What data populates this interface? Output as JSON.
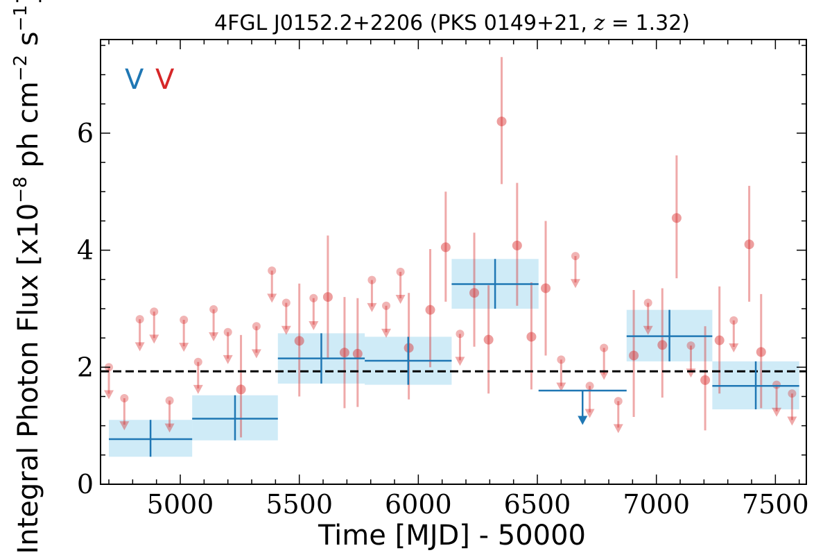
{
  "colors": {
    "monthly": "#d62728",
    "yearly": "#1f77b4",
    "band": "#87ceeb",
    "mean_line": "#000000"
  },
  "chart_data": {
    "type": "scatter",
    "title_parts": [
      "4FGL J0152.2+2206 (PKS 0149+21, ",
      "z",
      " = 1.32)"
    ],
    "xlabel": "Time [MJD] - 50000",
    "ylabel_parts": [
      "Integral Photon Flux [x10",
      "−8",
      " ph cm",
      "−2",
      " s",
      "−1",
      "]"
    ],
    "xlim": [
      4665,
      7630
    ],
    "ylim": [
      0,
      7.6
    ],
    "x_ticks": [
      5000,
      5500,
      6000,
      6500,
      7000,
      7500
    ],
    "y_ticks": [
      0,
      2,
      4,
      6
    ],
    "mean_flux": 1.93,
    "legend_markers": [
      "V",
      "V"
    ],
    "series": [
      {
        "kind": "monthly",
        "detections": [
          {
            "x": 5500,
            "y": 2.45,
            "lo": 1.5,
            "hi": 3.43
          },
          {
            "x": 5620,
            "y": 3.2,
            "lo": 2.15,
            "hi": 4.25
          },
          {
            "x": 5690,
            "y": 2.25,
            "lo": 1.3,
            "hi": 3.2
          },
          {
            "x": 5745,
            "y": 2.23,
            "lo": 1.32,
            "hi": 3.18
          },
          {
            "x": 5255,
            "y": 1.62,
            "lo": 0.8,
            "hi": 2.55
          },
          {
            "x": 5960,
            "y": 2.33,
            "lo": 1.45,
            "hi": 3.27
          },
          {
            "x": 6050,
            "y": 2.98,
            "lo": 2.0,
            "hi": 4.02
          },
          {
            "x": 6115,
            "y": 4.05,
            "lo": 3.12,
            "hi": 5.0
          },
          {
            "x": 6235,
            "y": 3.27,
            "lo": 2.35,
            "hi": 4.3
          },
          {
            "x": 6295,
            "y": 2.47,
            "lo": 1.55,
            "hi": 3.4
          },
          {
            "x": 6350,
            "y": 6.2,
            "lo": 5.13,
            "hi": 7.3
          },
          {
            "x": 6415,
            "y": 4.08,
            "lo": 3.05,
            "hi": 5.15
          },
          {
            "x": 6475,
            "y": 2.52,
            "lo": 1.62,
            "hi": 3.45
          },
          {
            "x": 6535,
            "y": 3.35,
            "lo": 2.2,
            "hi": 4.5
          },
          {
            "x": 6905,
            "y": 2.2,
            "lo": 1.15,
            "hi": 3.32
          },
          {
            "x": 7025,
            "y": 2.38,
            "lo": 1.48,
            "hi": 3.35
          },
          {
            "x": 7085,
            "y": 4.55,
            "lo": 3.52,
            "hi": 5.62
          },
          {
            "x": 7205,
            "y": 1.78,
            "lo": 0.92,
            "hi": 2.7
          },
          {
            "x": 7265,
            "y": 2.46,
            "lo": 1.55,
            "hi": 3.38
          },
          {
            "x": 7390,
            "y": 4.1,
            "lo": 3.12,
            "hi": 5.1
          },
          {
            "x": 7440,
            "y": 2.26,
            "lo": 1.3,
            "hi": 3.25
          }
        ],
        "upper_limits": [
          {
            "x": 4700,
            "y": 2.0
          },
          {
            "x": 4765,
            "y": 1.47
          },
          {
            "x": 4830,
            "y": 2.82
          },
          {
            "x": 4890,
            "y": 2.95
          },
          {
            "x": 4955,
            "y": 1.43
          },
          {
            "x": 5015,
            "y": 2.81
          },
          {
            "x": 5075,
            "y": 2.09
          },
          {
            "x": 5140,
            "y": 2.99
          },
          {
            "x": 5200,
            "y": 2.6
          },
          {
            "x": 5320,
            "y": 2.7
          },
          {
            "x": 5385,
            "y": 3.65
          },
          {
            "x": 5445,
            "y": 3.1
          },
          {
            "x": 5560,
            "y": 3.18
          },
          {
            "x": 5805,
            "y": 3.49
          },
          {
            "x": 5865,
            "y": 3.05
          },
          {
            "x": 5925,
            "y": 3.63
          },
          {
            "x": 6175,
            "y": 2.57
          },
          {
            "x": 6600,
            "y": 2.13
          },
          {
            "x": 6660,
            "y": 3.9
          },
          {
            "x": 6720,
            "y": 1.68
          },
          {
            "x": 6780,
            "y": 2.33
          },
          {
            "x": 6840,
            "y": 1.42
          },
          {
            "x": 6965,
            "y": 3.1
          },
          {
            "x": 7145,
            "y": 2.37
          },
          {
            "x": 7325,
            "y": 2.8
          },
          {
            "x": 7505,
            "y": 1.7
          },
          {
            "x": 7570,
            "y": 1.55
          }
        ]
      },
      {
        "kind": "yearly",
        "bins": [
          {
            "x0": 4700,
            "x1": 5050,
            "y": 0.77,
            "lo": 0.47,
            "hi": 1.1
          },
          {
            "x0": 5050,
            "x1": 5410,
            "y": 1.12,
            "lo": 0.75,
            "hi": 1.52
          },
          {
            "x0": 5410,
            "x1": 5775,
            "y": 2.15,
            "lo": 1.72,
            "hi": 2.58
          },
          {
            "x0": 5775,
            "x1": 6140,
            "y": 2.11,
            "lo": 1.7,
            "hi": 2.52
          },
          {
            "x0": 6140,
            "x1": 6505,
            "y": 3.42,
            "lo": 3.0,
            "hi": 3.85
          },
          {
            "x0": 6875,
            "x1": 7235,
            "y": 2.53,
            "lo": 2.1,
            "hi": 2.98
          },
          {
            "x0": 7235,
            "x1": 7600,
            "y": 1.68,
            "lo": 1.28,
            "hi": 2.1
          }
        ],
        "upper_limits": [
          {
            "x0": 6505,
            "x1": 6875,
            "y": 1.6
          }
        ]
      }
    ]
  }
}
